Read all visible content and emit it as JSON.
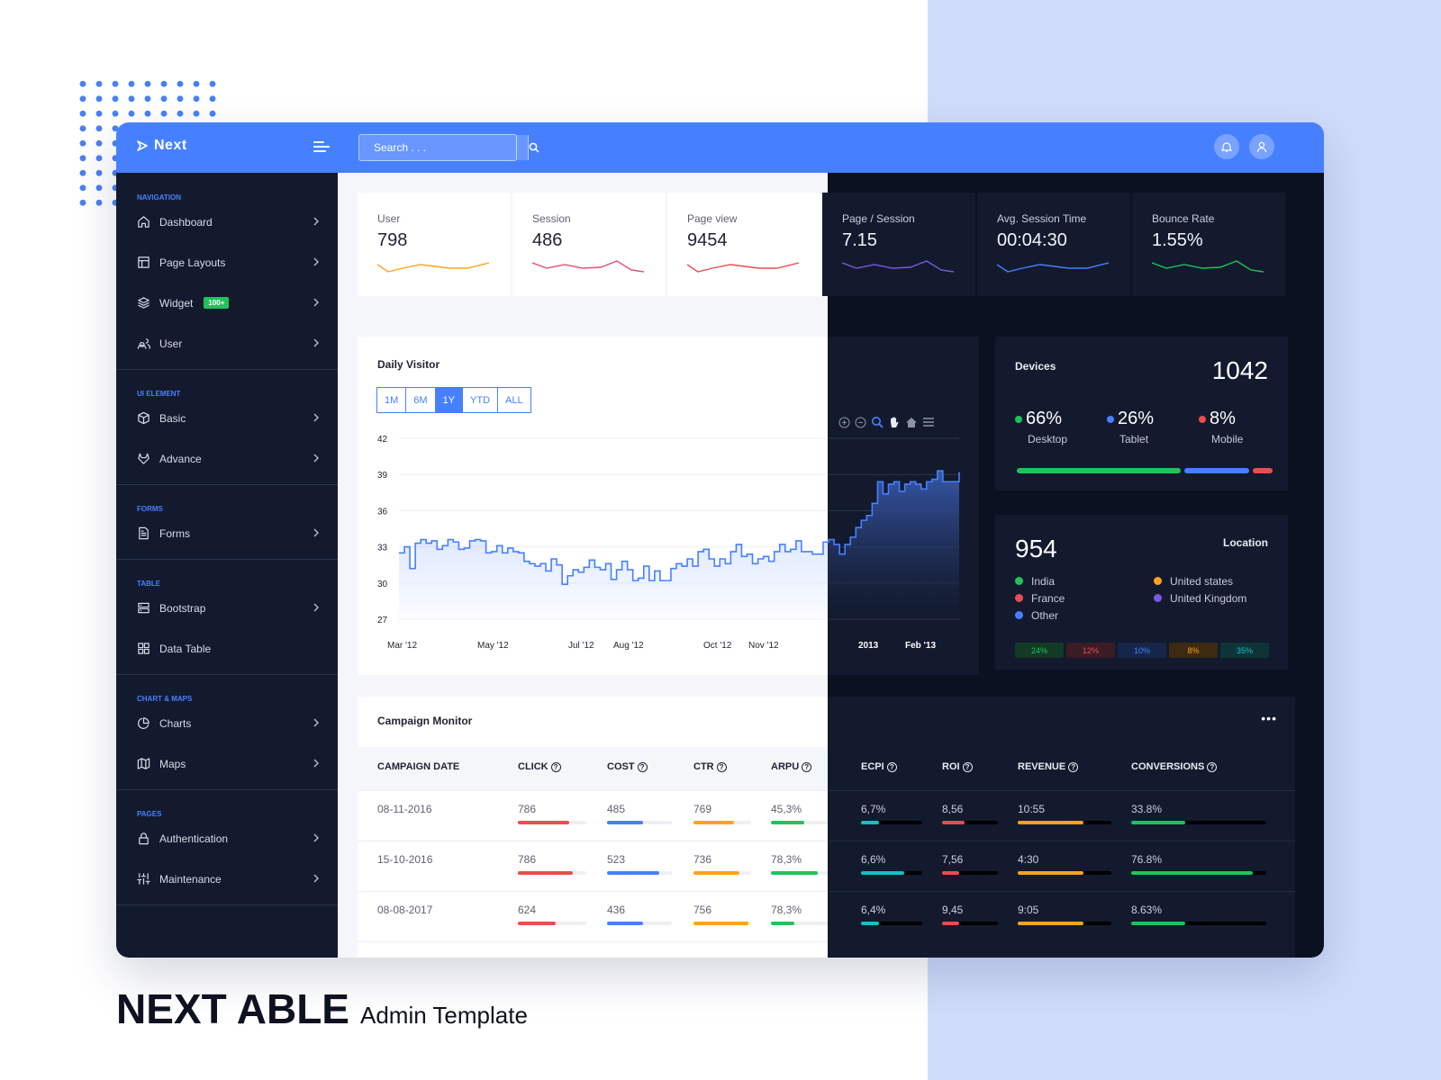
{
  "brand": {
    "title": "NEXT ABLE",
    "subtitle": "Admin Template"
  },
  "topbar": {
    "logo": "Next",
    "search_placeholder": "Search . . ."
  },
  "sidebar": {
    "sections": [
      {
        "caption": "NAVIGATION",
        "items": [
          {
            "label": "Dashboard",
            "icon": "home-icon"
          },
          {
            "label": "Page Layouts",
            "icon": "layout-icon"
          },
          {
            "label": "Widget",
            "icon": "layers-icon",
            "badge": "100+"
          },
          {
            "label": "User",
            "icon": "users-icon"
          }
        ]
      },
      {
        "caption": "UI ELEMENT",
        "items": [
          {
            "label": "Basic",
            "icon": "box-icon"
          },
          {
            "label": "Advance",
            "icon": "gitlab-icon"
          }
        ]
      },
      {
        "caption": "FORMS",
        "items": [
          {
            "label": "Forms",
            "icon": "file-text-icon"
          }
        ]
      },
      {
        "caption": "TABLE",
        "items": [
          {
            "label": "Bootstrap",
            "icon": "server-icon"
          },
          {
            "label": "Data Table",
            "icon": "grid-icon"
          }
        ]
      },
      {
        "caption": "CHART & MAPS",
        "items": [
          {
            "label": "Charts",
            "icon": "pie-chart-icon"
          },
          {
            "label": "Maps",
            "icon": "map-icon"
          }
        ]
      },
      {
        "caption": "PAGES",
        "items": [
          {
            "label": "Authentication",
            "icon": "lock-icon"
          },
          {
            "label": "Maintenance",
            "icon": "sliders-icon"
          }
        ]
      }
    ]
  },
  "stats": [
    {
      "label": "User",
      "value": "798",
      "color": "#ffa21d"
    },
    {
      "label": "Session",
      "value": "486",
      "color": "#ea4d6b"
    },
    {
      "label": "Page view",
      "value": "9454",
      "color": "#ea4d4d"
    },
    {
      "label": "Page / Session",
      "value": "7.15",
      "color": "#7759de"
    },
    {
      "label": "Avg. Session Time",
      "value": "00:04:30",
      "color": "#4680ff"
    },
    {
      "label": "Bounce Rate",
      "value": "1.55%",
      "color": "#1fc35b"
    }
  ],
  "daily_visitor": {
    "title": "Daily Visitor",
    "ranges": [
      "1M",
      "6M",
      "1Y",
      "YTD",
      "ALL"
    ],
    "active_range": "1Y"
  },
  "chart_data": {
    "type": "area",
    "title": "Daily Visitor",
    "ylim": [
      27,
      42
    ],
    "yticks": [
      42,
      39,
      36,
      33,
      30,
      27
    ],
    "xticks": [
      "Mar '12",
      "May '12",
      "Jul '12",
      "Aug '12",
      "Oct '12",
      "Nov '12",
      "2013",
      "Feb '13"
    ],
    "series": [
      {
        "values": [
          32.5,
          33,
          31.2,
          33.3,
          33.6,
          33.3,
          33.5,
          32.8,
          33.1,
          33.6,
          33.4,
          32.8,
          32.9,
          33.5,
          33.6,
          33.5,
          32.5,
          32.6,
          33.1,
          32.5,
          32.9,
          32.6,
          32.5,
          31.8,
          31.6,
          31.4,
          31.6,
          31.0,
          32.0,
          31.5,
          29.9,
          30.6,
          31.1,
          30.9,
          31.3,
          31.9,
          31.3,
          31.1,
          31.6,
          30.3,
          31.1,
          31.8,
          31.1,
          30.2,
          30.4,
          31.4,
          30.2,
          31.0,
          30.2,
          30.2,
          31.2,
          31.6,
          31.4,
          32.0,
          31.4,
          32.6,
          32.8,
          32.0,
          31.4,
          32.0,
          31.6,
          32.6,
          33.2,
          32.2,
          32.4,
          31.6,
          32.0,
          32.2,
          31.8,
          32.6,
          33.2,
          32.6,
          32.8,
          33.5,
          32.6,
          32.6,
          32.4,
          32.4,
          33.4,
          33.6,
          33.2,
          32.4,
          33.2,
          33.8,
          34.6,
          35.2,
          35.6,
          36.6,
          38.4,
          37.4,
          38.2,
          38.4,
          37.6,
          38.2,
          38.4,
          38.2,
          37.8,
          38.4,
          38.6,
          39.3,
          38.4,
          38.4,
          38.4,
          39.2
        ]
      }
    ]
  },
  "devices": {
    "title": "Devices",
    "total": "1042",
    "items": [
      {
        "value": "66%",
        "label": "Desktop",
        "color": "#1fc35b",
        "share": 0.66
      },
      {
        "value": "26%",
        "label": "Tablet",
        "color": "#4680ff",
        "share": 0.26
      },
      {
        "value": "8%",
        "label": "Mobile",
        "color": "#ea4d4d",
        "share": 0.08
      }
    ]
  },
  "location": {
    "title": "Location",
    "total": "954",
    "items": [
      {
        "label": "India",
        "color": "#1fc35b"
      },
      {
        "label": "United states",
        "color": "#ffa21d"
      },
      {
        "label": "France",
        "color": "#ea4d4d"
      },
      {
        "label": "United Kingdom",
        "color": "#7759de"
      },
      {
        "label": "Other",
        "color": "#4680ff"
      }
    ],
    "shares": [
      {
        "value": "24%",
        "color": "#1fc35b",
        "bg": "#123a24"
      },
      {
        "value": "12%",
        "color": "#ea4d4d",
        "bg": "#3b1c24"
      },
      {
        "value": "10%",
        "color": "#4680ff",
        "bg": "#16254a"
      },
      {
        "value": "8%",
        "color": "#ffa21d",
        "bg": "#3d2a12"
      },
      {
        "value": "35%",
        "color": "#13c2c2",
        "bg": "#0f3438"
      }
    ]
  },
  "campaign": {
    "title": "Campaign Monitor",
    "columns": [
      "CAMPAIGN DATE",
      "CLICK",
      "COST",
      "CTR",
      "ARPU",
      "ECPI",
      "ROI",
      "REVENUE",
      "CONVERSIONS"
    ],
    "rows": [
      {
        "date": "08-11-2016",
        "click": "786",
        "cost": "485",
        "ctr": "769",
        "arpu": "45,3%",
        "ecpi": "6,7%",
        "roi": "8,56",
        "revenue": "10:55",
        "conversions": "33.8%",
        "bars": [
          0.75,
          0.55,
          0.7,
          0.5,
          0.3,
          0.4,
          0.7,
          0.4
        ]
      },
      {
        "date": "15-10-2016",
        "click": "786",
        "cost": "523",
        "ctr": "736",
        "arpu": "78,3%",
        "ecpi": "6,6%",
        "roi": "7,56",
        "revenue": "4:30",
        "conversions": "76.8%",
        "bars": [
          0.8,
          0.8,
          0.8,
          0.7,
          0.7,
          0.3,
          0.7,
          0.9
        ]
      },
      {
        "date": "08-08-2017",
        "click": "624",
        "cost": "436",
        "ctr": "756",
        "arpu": "78,3%",
        "ecpi": "6,4%",
        "roi": "9,45",
        "revenue": "9:05",
        "conversions": "8.63%",
        "bars": [
          0.55,
          0.55,
          0.95,
          0.35,
          0.3,
          0.3,
          0.7,
          0.4
        ]
      }
    ]
  },
  "bar_colors": [
    "#ea4d4d",
    "#4680ff",
    "#ffa21d",
    "#1fc35b",
    "#13c2c2",
    "#ea4d4d",
    "#ffa21d",
    "#1fc35b"
  ]
}
